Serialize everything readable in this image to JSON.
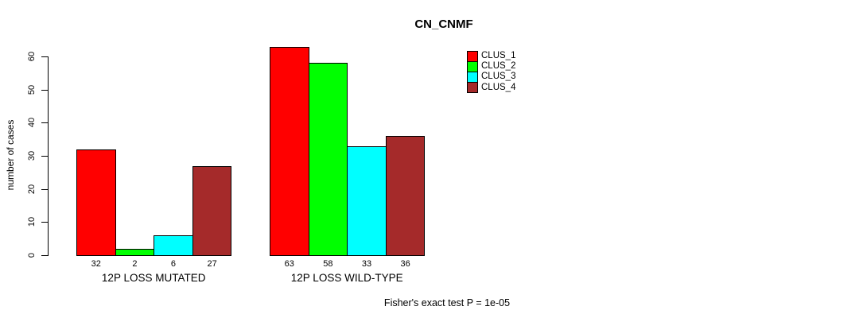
{
  "title": "CN_CNMF",
  "footer": "Fisher's exact test P = 1e-05",
  "chart_data": {
    "type": "bar",
    "title": "CN_CNMF",
    "xlabel": "",
    "ylabel": "number of cases",
    "ylim": [
      0,
      60
    ],
    "yticks": [
      0,
      10,
      20,
      30,
      40,
      50,
      60
    ],
    "grid": false,
    "legend_position": "top-right",
    "categories": [
      "12P LOSS MUTATED",
      "12P LOSS WILD-TYPE"
    ],
    "series": [
      {
        "name": "CLUS_1",
        "color": "#ff0000",
        "values": [
          32,
          63
        ]
      },
      {
        "name": "CLUS_2",
        "color": "#00ff00",
        "values": [
          2,
          58
        ]
      },
      {
        "name": "CLUS_3",
        "color": "#00ffff",
        "values": [
          6,
          33
        ]
      },
      {
        "name": "CLUS_4",
        "color": "#a52a2a",
        "values": [
          27,
          36
        ]
      }
    ],
    "bar_value_labels": [
      [
        32,
        2,
        6,
        27
      ],
      [
        63,
        58,
        33,
        36
      ]
    ],
    "annotation": "Fisher's exact test P = 1e-05",
    "bar_border_color": "#000000",
    "background_color": "#ffffff"
  }
}
